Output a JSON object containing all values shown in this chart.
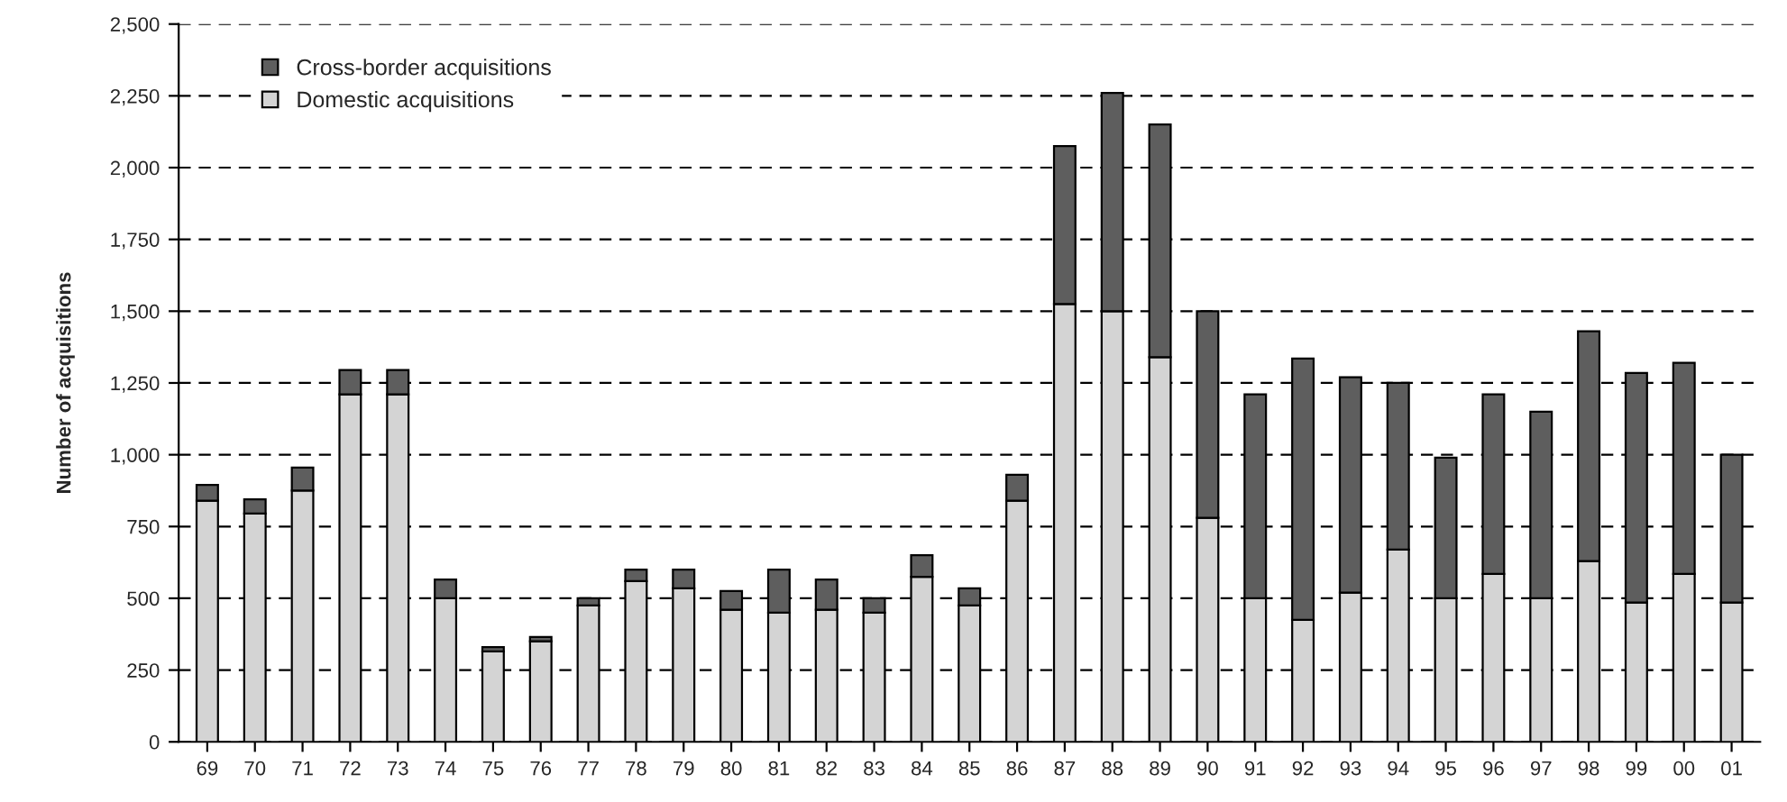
{
  "chart_data": {
    "type": "bar",
    "stacked": true,
    "ylabel": "Number of acquisitions",
    "categories": [
      "69",
      "70",
      "71",
      "72",
      "73",
      "74",
      "75",
      "76",
      "77",
      "78",
      "79",
      "80",
      "81",
      "82",
      "83",
      "84",
      "85",
      "86",
      "87",
      "88",
      "89",
      "90",
      "91",
      "92",
      "93",
      "94",
      "95",
      "96",
      "97",
      "98",
      "99",
      "00",
      "01"
    ],
    "series": [
      {
        "name": "Domestic acquisitions",
        "color": "#d4d4d4",
        "values": [
          840,
          795,
          875,
          1210,
          1210,
          500,
          315,
          350,
          475,
          560,
          535,
          460,
          450,
          460,
          450,
          575,
          475,
          840,
          1525,
          1500,
          1340,
          780,
          500,
          425,
          520,
          670,
          500,
          585,
          500,
          630,
          485,
          585,
          485
        ]
      },
      {
        "name": "Cross-border acquisitions",
        "color": "#5e5e5e",
        "values": [
          55,
          50,
          80,
          85,
          85,
          65,
          15,
          15,
          25,
          40,
          65,
          65,
          150,
          105,
          50,
          75,
          60,
          90,
          550,
          760,
          810,
          720,
          710,
          910,
          750,
          580,
          490,
          625,
          650,
          800,
          800,
          735,
          515
        ]
      }
    ],
    "ylim": [
      0,
      2500
    ],
    "yticks": [
      0,
      {
        "value": 250,
        "label": "250"
      },
      {
        "value": 500,
        "label": "500"
      },
      {
        "value": 750,
        "label": "750"
      },
      {
        "value": 1000,
        "label": "1,000"
      },
      {
        "value": 1250,
        "label": "1,250"
      },
      {
        "value": 1500,
        "label": "1,500"
      },
      {
        "value": 1750,
        "label": "1,750"
      },
      {
        "value": 2000,
        "label": "2,000"
      },
      {
        "value": 2250,
        "label": "2,250"
      },
      {
        "value": 2500,
        "label": "2,500"
      }
    ],
    "grid": "y",
    "legend": "top left"
  }
}
